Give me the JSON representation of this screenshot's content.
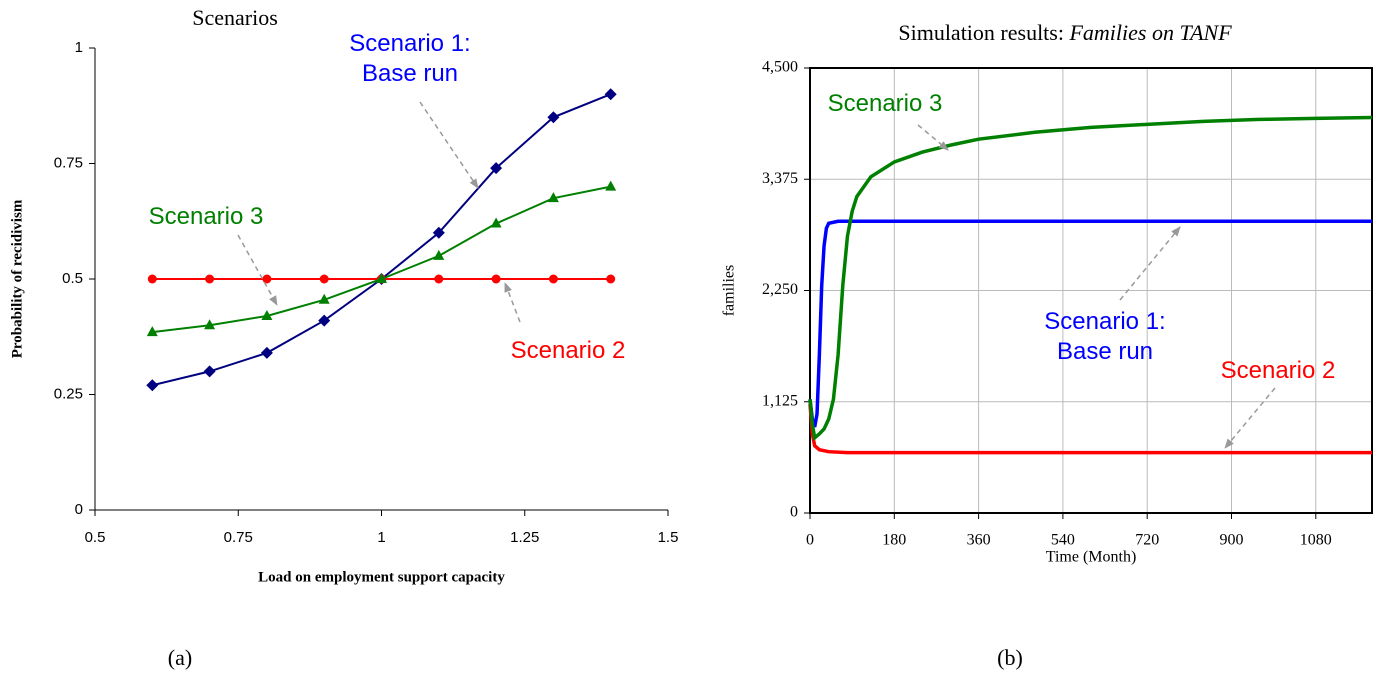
{
  "chart_data": [
    {
      "type": "line",
      "title": "Scenarios",
      "xlabel": "Load on employment support capacity",
      "ylabel": "Probability of recidivism",
      "caption": "(a)",
      "xlim": [
        0.5,
        1.5
      ],
      "xticks": [
        0.5,
        0.75,
        1,
        1.25,
        1.5
      ],
      "ylim": [
        0,
        1
      ],
      "yticks": [
        0,
        0.25,
        0.5,
        0.75,
        1
      ],
      "grid": false,
      "series": [
        {
          "label": [
            "Scenario 1:",
            "Base run"
          ],
          "color": "#000080",
          "label_color": "#0000ff",
          "marker": "diamond",
          "x": [
            0.6,
            0.7,
            0.8,
            0.9,
            1.0,
            1.1,
            1.2,
            1.3,
            1.4
          ],
          "values": [
            0.27,
            0.3,
            0.34,
            0.41,
            0.5,
            0.6,
            0.74,
            0.85,
            0.9
          ]
        },
        {
          "label": [
            "Scenario 2"
          ],
          "color": "#ff0000",
          "label_color": "#ff0000",
          "marker": "circle",
          "x": [
            0.6,
            0.7,
            0.8,
            0.9,
            1.0,
            1.1,
            1.2,
            1.3,
            1.4
          ],
          "values": [
            0.5,
            0.5,
            0.5,
            0.5,
            0.5,
            0.5,
            0.5,
            0.5,
            0.5
          ]
        },
        {
          "label": [
            "Scenario 3"
          ],
          "color": "#008000",
          "label_color": "#008000",
          "marker": "triangle",
          "x": [
            0.6,
            0.7,
            0.8,
            0.9,
            1.0,
            1.1,
            1.2,
            1.3,
            1.4
          ],
          "values": [
            0.385,
            0.4,
            0.42,
            0.455,
            0.5,
            0.55,
            0.62,
            0.675,
            0.7
          ]
        }
      ]
    },
    {
      "type": "line",
      "title": "Simulation results:",
      "title_italic": "Families on TANF",
      "xlabel": "Time (Month)",
      "ylabel": "families",
      "caption": "(b)",
      "xlim": [
        0,
        1200
      ],
      "xticks": [
        0,
        180,
        360,
        540,
        720,
        900,
        1080
      ],
      "ylim": [
        0,
        4500
      ],
      "yticks": [
        0,
        {
          "value": 1125,
          "label": "1,125"
        },
        {
          "value": 2250,
          "label": "2,250"
        },
        {
          "value": 3375,
          "label": "3,375"
        },
        {
          "value": 4500,
          "label": "4,500"
        }
      ],
      "grid": true,
      "series": [
        {
          "label": [
            "Scenario 1:",
            "Base run"
          ],
          "color": "#0000ff",
          "label_color": "#0000ff",
          "marker": "none",
          "x": [
            0,
            5,
            10,
            15,
            20,
            25,
            30,
            35,
            40,
            60,
            130,
            1200
          ],
          "values": [
            1150,
            950,
            870,
            1000,
            1600,
            2300,
            2700,
            2880,
            2930,
            2950,
            2950,
            2950
          ]
        },
        {
          "label": [
            "Scenario 2"
          ],
          "color": "#ff0000",
          "label_color": "#ff0000",
          "marker": "none",
          "x": [
            0,
            5,
            10,
            20,
            40,
            80,
            1200
          ],
          "values": [
            1100,
            800,
            680,
            640,
            620,
            610,
            610
          ]
        },
        {
          "label": [
            "Scenario 3"
          ],
          "color": "#008000",
          "label_color": "#008000",
          "marker": "none",
          "x": [
            0,
            5,
            10,
            20,
            30,
            40,
            50,
            60,
            70,
            80,
            90,
            100,
            130,
            180,
            240,
            300,
            360,
            480,
            600,
            720,
            840,
            960,
            1080,
            1200
          ],
          "values": [
            1150,
            900,
            760,
            800,
            850,
            950,
            1150,
            1600,
            2300,
            2800,
            3050,
            3200,
            3400,
            3550,
            3650,
            3720,
            3780,
            3850,
            3900,
            3930,
            3960,
            3980,
            3990,
            4000
          ]
        }
      ]
    }
  ]
}
